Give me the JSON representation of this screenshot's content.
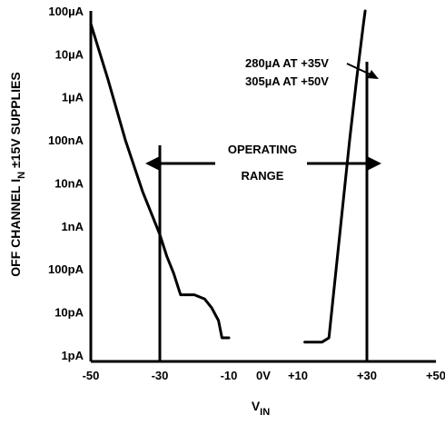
{
  "chart_data": {
    "type": "line",
    "ylabel_main": "OFF CHANNEL  I",
    "ylabel_sub": "N",
    "ylabel_tail": " ±15V SUPPLIES",
    "xlabel_main": "V",
    "xlabel_sub": "IN",
    "x_ticks": [
      "-50",
      "-30",
      "-10",
      "0V",
      "+10",
      "+30",
      "+50"
    ],
    "x_tick_values": [
      -50,
      -30,
      -10,
      0,
      10,
      30,
      50
    ],
    "y_ticks": [
      "100µA",
      "10µA",
      "1µA",
      "100nA",
      "10nA",
      "1nA",
      "100pA",
      "10pA",
      "1pA"
    ],
    "y_tick_exponents": [
      -4,
      -5,
      -6,
      -7,
      -8,
      -9,
      -10,
      -11,
      -12
    ],
    "xlim": [
      -50,
      50
    ],
    "ylim_log10_amps": [
      -12.15,
      -4
    ],
    "y_scale": "log",
    "grid": false,
    "series": [
      {
        "points": [
          [
            -50,
            -4.3
          ],
          [
            -45,
            -5.6
          ],
          [
            -40,
            -7.0
          ],
          [
            -35,
            -8.2
          ],
          [
            -32,
            -8.8
          ],
          [
            -30,
            -9.2
          ],
          [
            -28,
            -9.7
          ],
          [
            -26,
            -10.1
          ],
          [
            -24,
            -10.6
          ],
          [
            -20,
            -10.6
          ],
          [
            -17,
            -10.7
          ],
          [
            -15,
            -10.9
          ],
          [
            -13,
            -11.2
          ],
          [
            -12,
            -11.6
          ],
          [
            -10,
            -11.6
          ]
        ]
      },
      {
        "points": [
          [
            12,
            -11.7
          ],
          [
            17,
            -11.7
          ],
          [
            19,
            -11.6
          ],
          [
            22,
            -9.3
          ],
          [
            25,
            -7.0
          ],
          [
            27,
            -5.6
          ],
          [
            29,
            -4.3
          ],
          [
            29.5,
            -4.0
          ]
        ]
      }
    ],
    "vertical_lines_x": [
      -30,
      30
    ],
    "arrow_range": [
      -30,
      30
    ],
    "annotations": {
      "operating_line1": "OPERATING",
      "operating_line2": "RANGE",
      "limit_line1": "280µA AT +35V",
      "limit_line2": "305µA AT +50V"
    }
  }
}
